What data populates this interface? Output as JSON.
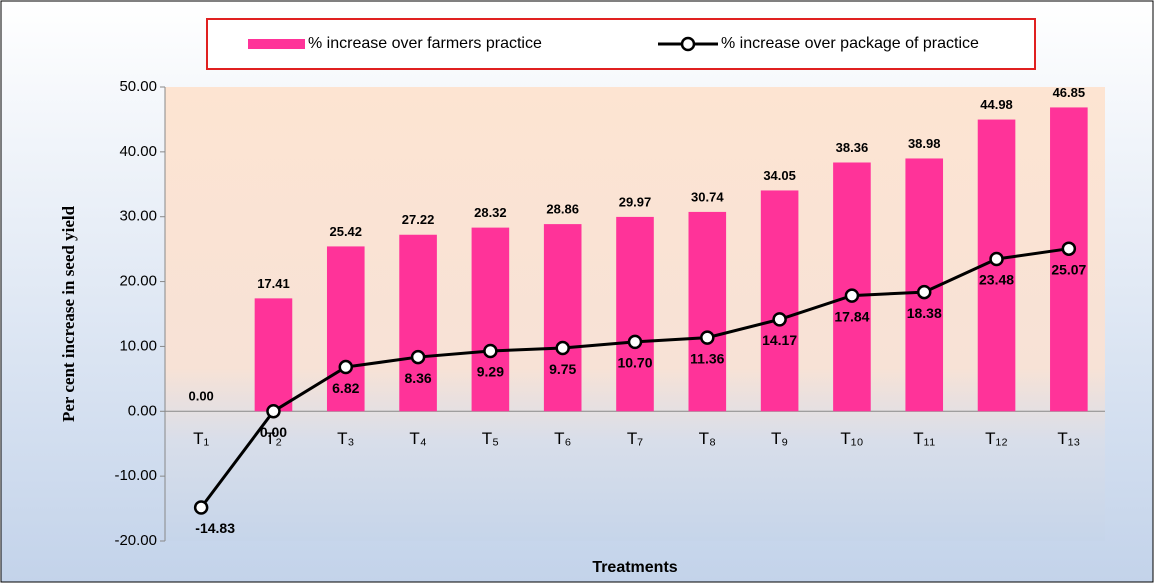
{
  "chart_data": {
    "type": "bar-line",
    "y_axis_label": "Per cent increase in seed yield",
    "x_axis_label": "Treatments",
    "categories": [
      "T₁",
      "T₂",
      "T₃",
      "T₄",
      "T₅",
      "T₆",
      "T₇",
      "T₈",
      "T₉",
      "T₁₀",
      "T₁₁",
      "T₁₂",
      "T₁₃"
    ],
    "series": [
      {
        "name": "% increase over farmers practice",
        "type": "bar",
        "color": "#ff3399",
        "values": [
          0,
          17.41,
          25.42,
          27.22,
          28.32,
          28.86,
          29.97,
          30.74,
          34.05,
          38.36,
          38.98,
          44.98,
          46.85
        ],
        "value_labels": [
          "0.00",
          "17.41",
          "25.42",
          "27.22",
          "28.32",
          "28.86",
          "29.97",
          "30.74",
          "34.05",
          "38.36",
          "38.98",
          "44.98",
          "46.85"
        ]
      },
      {
        "name": "% increase over package of practice",
        "type": "line",
        "color": "#000000",
        "values": [
          -14.83,
          0,
          6.82,
          8.36,
          9.29,
          9.75,
          10.7,
          11.36,
          14.17,
          17.84,
          18.38,
          23.48,
          25.07
        ],
        "value_labels": [
          "-14.83",
          "0.00",
          "6.82",
          "8.36",
          "9.29",
          "9.75",
          "10.70",
          "11.36",
          "14.17",
          "17.84",
          "18.38",
          "23.48",
          "25.07"
        ]
      }
    ],
    "ylim": [
      -20,
      50
    ],
    "yticks": [
      {
        "value": -20,
        "label": "-20.00"
      },
      {
        "value": -10,
        "label": "-10.00"
      },
      {
        "value": 0,
        "label": "0.00"
      },
      {
        "value": 10,
        "label": "10.00"
      },
      {
        "value": 20,
        "label": "20.00"
      },
      {
        "value": 30,
        "label": "30.00"
      },
      {
        "value": 40,
        "label": "40.00"
      },
      {
        "value": 50,
        "label": "50.00"
      }
    ],
    "grid": false,
    "legend": "top"
  }
}
